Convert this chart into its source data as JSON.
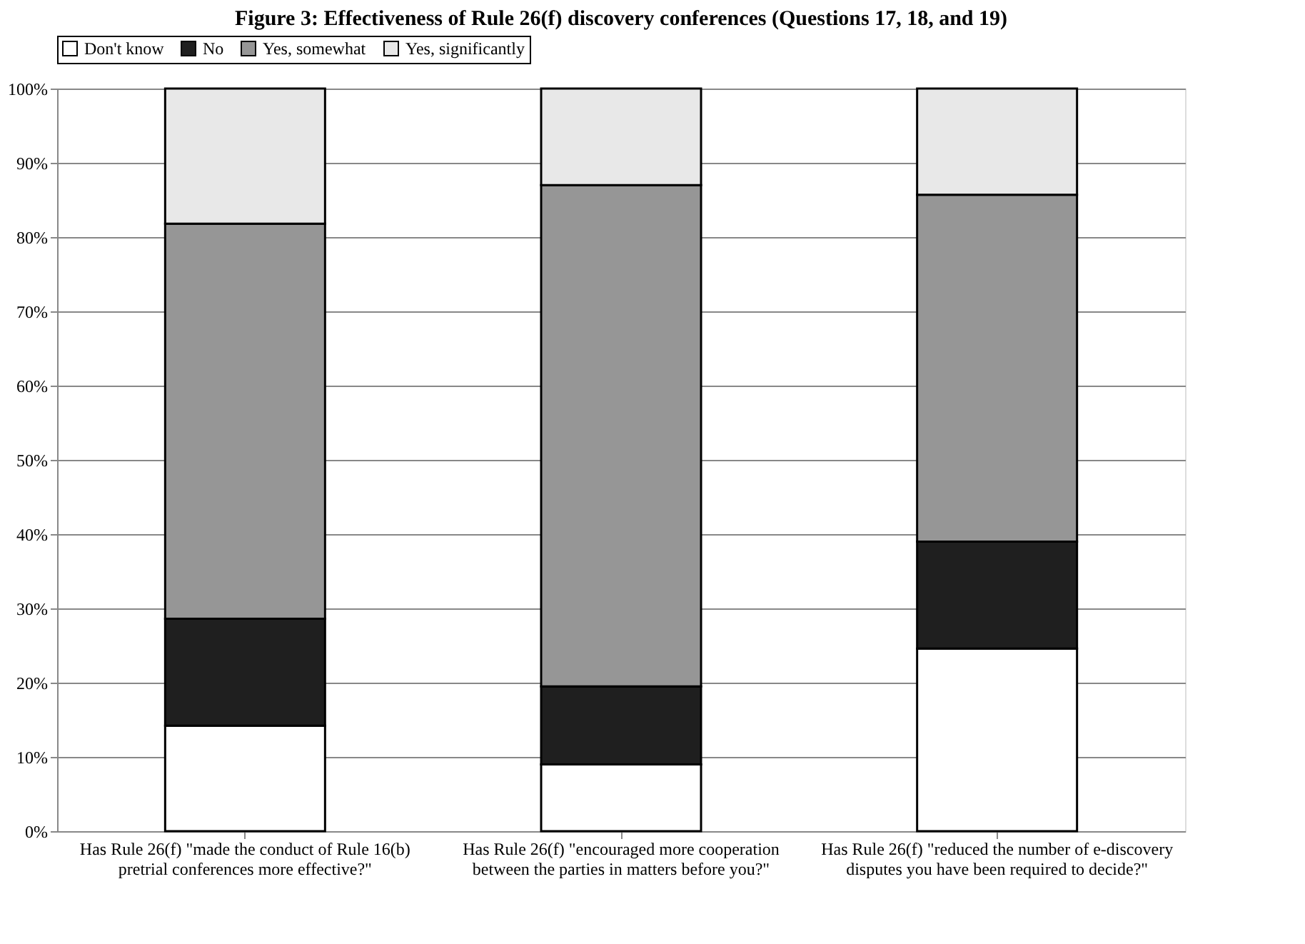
{
  "chart_data": {
    "type": "bar",
    "title": "Figure 3: Effectiveness of Rule 26(f) discovery conferences (Questions 17, 18, and 19)",
    "categories": [
      "Has Rule 26(f) \"made the conduct of Rule 16(b) pretrial conferences more effective?\"",
      "Has Rule 26(f) \"encouraged more cooperation between the parties in matters before you?\"",
      "Has Rule 26(f) \"reduced the number of e-discovery disputes you have been required to decide?\""
    ],
    "stacked": true,
    "series": [
      {
        "name": "Don't know",
        "color": "#ffffff",
        "values": [
          14.2,
          9.0,
          24.6
        ]
      },
      {
        "name": "No",
        "color": "#1f1f1f",
        "values": [
          14.4,
          10.5,
          14.4
        ]
      },
      {
        "name": "Yes, somewhat",
        "color": "#969696",
        "values": [
          53.2,
          67.5,
          46.7
        ]
      },
      {
        "name": "Yes, significantly",
        "color": "#e8e8e8",
        "values": [
          18.2,
          13.0,
          14.3
        ]
      }
    ],
    "ylim": [
      0,
      100
    ],
    "yticks": [
      {
        "value": 0,
        "label": "0%"
      },
      {
        "value": 10,
        "label": "10%"
      },
      {
        "value": 20,
        "label": "20%"
      },
      {
        "value": 30,
        "label": "30%"
      },
      {
        "value": 40,
        "label": "40%"
      },
      {
        "value": 50,
        "label": "50%"
      },
      {
        "value": 60,
        "label": "60%"
      },
      {
        "value": 70,
        "label": "70%"
      },
      {
        "value": 80,
        "label": "80%"
      },
      {
        "value": 90,
        "label": "90%"
      },
      {
        "value": 100,
        "label": "100%"
      }
    ],
    "grid": "y",
    "legend": "top"
  }
}
